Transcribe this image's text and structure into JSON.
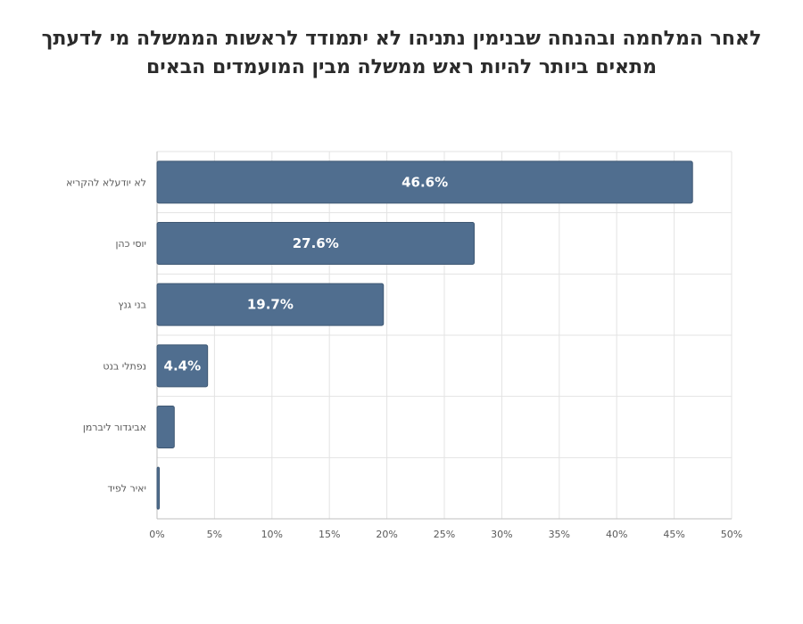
{
  "chart_data": {
    "type": "bar",
    "orientation": "horizontal",
    "title_lines": [
      "לאחר המלחמה ובהנחה שבנימין נתניהו לא יתמודד לראשות הממשלה מי לדעתך",
      "מתאים ביותר להיות ראש ממשלה מבין המועמדים הבאים"
    ],
    "categories": [
      "לא יודעלא להקריא",
      "יוסי כהן",
      "בני גנץ",
      "נפתלי בנט",
      "אביגדור ליברמן",
      "יאיר לפיד"
    ],
    "values": [
      46.6,
      27.6,
      19.7,
      4.4,
      1.5,
      0.2
    ],
    "data_labels": [
      "46.6%",
      "27.6%",
      "19.7%",
      "4.4%",
      "",
      ""
    ],
    "xlim": [
      0,
      50
    ],
    "x_ticks": [
      "0%",
      "5%",
      "10%",
      "15%",
      "20%",
      "25%",
      "30%",
      "35%",
      "40%",
      "45%",
      "50%"
    ],
    "grid": true,
    "legend": "none",
    "bar_color": "#506e8f",
    "bar_edge_color": "#3f5873",
    "grid_color": "#e3e3e3",
    "axis_color": "#bfbfbf"
  }
}
